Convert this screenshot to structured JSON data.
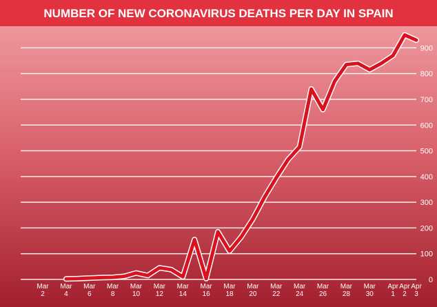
{
  "chart_data": {
    "type": "line",
    "title": "NUMBER OF NEW CORONAVIRUS DEATHS PER DAY IN SPAIN",
    "categories": [
      "Mar 2",
      null,
      "Mar 4",
      null,
      "Mar 6",
      null,
      "Mar 8",
      null,
      "Mar 10",
      null,
      "Mar 12",
      null,
      "Mar 14",
      null,
      "Mar 16",
      null,
      "Mar 18",
      null,
      "Mar 20",
      null,
      "Mar 22",
      null,
      "Mar 24",
      null,
      "Mar 26",
      null,
      "Mar 28",
      null,
      "Mar 30",
      null,
      "Apr 1",
      "Apr 2",
      "Apr 3"
    ],
    "series": [
      {
        "color": "#d8121f",
        "values": [
          null,
          null,
          2,
          3,
          5,
          7,
          8,
          12,
          25,
          15,
          45,
          38,
          10,
          155,
          3,
          185,
          110,
          165,
          235,
          320,
          395,
          465,
          515,
          740,
          660,
          770,
          835,
          840,
          815,
          840,
          870,
          950,
          930
        ]
      }
    ],
    "ylim": [
      0,
      960
    ],
    "yticks": [
      0,
      100,
      200,
      300,
      400,
      500,
      600,
      700,
      800,
      900
    ],
    "grid": true
  }
}
